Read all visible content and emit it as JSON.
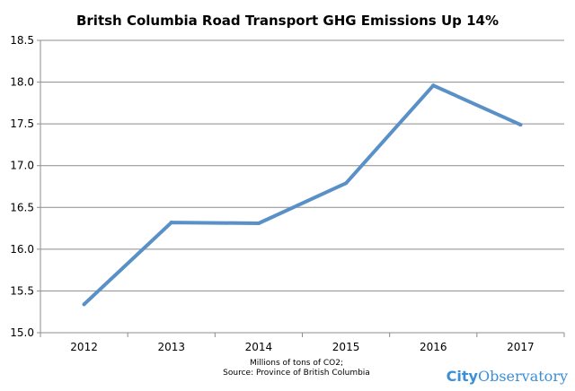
{
  "chart_data": {
    "type": "line",
    "title": "Britsh Columbia Road Transport GHG Emissions Up 14%",
    "x": [
      "2012",
      "2013",
      "2014",
      "2015",
      "2016",
      "2017"
    ],
    "series": [
      {
        "values": [
          15.34,
          16.32,
          16.31,
          16.79,
          17.96,
          17.49
        ]
      }
    ],
    "ylim": [
      15.0,
      18.5
    ],
    "yticks": [
      "15.0",
      "15.5",
      "16.0",
      "16.5",
      "17.0",
      "17.5",
      "18.0",
      "18.5"
    ],
    "grid": true,
    "line_color": "#5a90c8",
    "caption_line1": "Millions of tons of CO2;",
    "caption_line2": "Source: Province of British Columbia"
  },
  "logo": {
    "part1": "City",
    "part2": "Observatory",
    "color": "#3b8fd6"
  }
}
